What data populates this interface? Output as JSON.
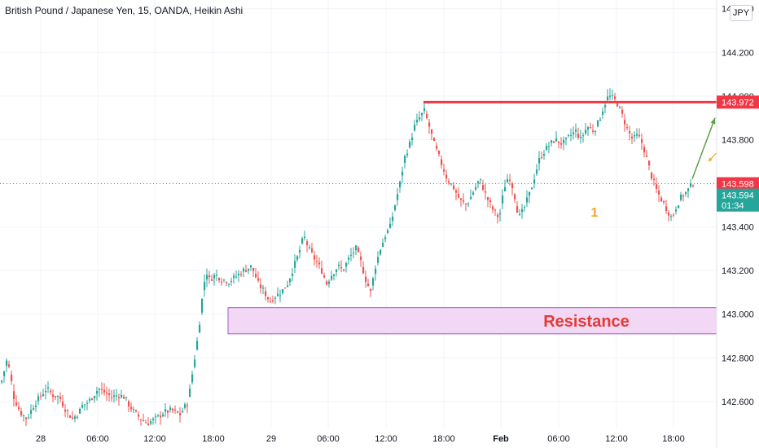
{
  "header": {
    "title": "British Pound / Japanese Yen, 15, OANDA, Heikin Ashi",
    "currency": "JPY"
  },
  "colors": {
    "up": "#26a69a",
    "down": "#ef5350",
    "resistance_line": "#f23645",
    "zone_fill": "#f2d8f4",
    "zone_border": "#a35bc4",
    "arrow": "#5da046",
    "small_arrow": "#f5a623",
    "grid": "#f0f3fa",
    "axis_text": "#131722"
  },
  "chart_data": {
    "type": "candlestick",
    "ylim": [
      142.48,
      144.44
    ],
    "x_ticks": [
      "28",
      "06:00",
      "12:00",
      "18:00",
      "29",
      "06:00",
      "12:00",
      "18:00",
      "Feb",
      "06:00",
      "12:00",
      "18:00"
    ],
    "y_ticks": [
      "144.400",
      "144.200",
      "144.000",
      "143.800",
      "143.600",
      "143.400",
      "143.200",
      "143.000",
      "142.800",
      "142.600"
    ],
    "price_labels": [
      {
        "text": "143.972",
        "value": 143.972,
        "style": "red"
      },
      {
        "text": "143.598",
        "value": 143.598,
        "style": "red"
      },
      {
        "text": "143.594",
        "value": 143.594,
        "style": "green"
      },
      {
        "text": "01:34",
        "value": 143.53,
        "style": "green"
      }
    ],
    "resistance_level": 143.972,
    "current_price": 143.598,
    "zone": {
      "label": "Resistance",
      "high": 143.03,
      "low": 142.91
    },
    "annotation": "1",
    "series_path": [
      [
        0,
        142.68
      ],
      [
        8,
        142.8
      ],
      [
        16,
        142.62
      ],
      [
        24,
        142.55
      ],
      [
        32,
        142.52
      ],
      [
        40,
        142.58
      ],
      [
        48,
        142.62
      ],
      [
        56,
        142.66
      ],
      [
        64,
        142.63
      ],
      [
        72,
        142.62
      ],
      [
        80,
        142.56
      ],
      [
        88,
        142.52
      ],
      [
        96,
        142.55
      ],
      [
        100,
        142.58
      ],
      [
        108,
        142.6
      ],
      [
        114,
        142.63
      ],
      [
        120,
        142.66
      ],
      [
        128,
        142.64
      ],
      [
        136,
        142.62
      ],
      [
        144,
        142.63
      ],
      [
        152,
        142.62
      ],
      [
        158,
        142.58
      ],
      [
        164,
        142.55
      ],
      [
        172,
        142.52
      ],
      [
        180,
        142.5
      ],
      [
        190,
        142.52
      ],
      [
        200,
        142.55
      ],
      [
        210,
        142.56
      ],
      [
        220,
        142.54
      ],
      [
        230,
        142.6
      ],
      [
        236,
        142.75
      ],
      [
        242,
        142.9
      ],
      [
        248,
        143.1
      ],
      [
        252,
        143.2
      ],
      [
        256,
        143.16
      ],
      [
        264,
        143.18
      ],
      [
        272,
        143.16
      ],
      [
        280,
        143.15
      ],
      [
        288,
        143.17
      ],
      [
        298,
        143.2
      ],
      [
        308,
        143.22
      ],
      [
        316,
        143.14
      ],
      [
        324,
        143.1
      ],
      [
        330,
        143.06
      ],
      [
        336,
        143.08
      ],
      [
        344,
        143.1
      ],
      [
        352,
        143.14
      ],
      [
        360,
        143.22
      ],
      [
        366,
        143.28
      ],
      [
        372,
        143.36
      ],
      [
        378,
        143.3
      ],
      [
        386,
        143.25
      ],
      [
        394,
        143.2
      ],
      [
        400,
        143.14
      ],
      [
        406,
        143.18
      ],
      [
        414,
        143.22
      ],
      [
        420,
        143.2
      ],
      [
        428,
        143.26
      ],
      [
        436,
        143.3
      ],
      [
        442,
        143.24
      ],
      [
        448,
        143.16
      ],
      [
        454,
        143.1
      ],
      [
        460,
        143.22
      ],
      [
        466,
        143.3
      ],
      [
        472,
        143.36
      ],
      [
        478,
        143.4
      ],
      [
        484,
        143.5
      ],
      [
        490,
        143.6
      ],
      [
        496,
        143.72
      ],
      [
        502,
        143.78
      ],
      [
        508,
        143.86
      ],
      [
        514,
        143.9
      ],
      [
        520,
        143.93
      ],
      [
        526,
        143.86
      ],
      [
        532,
        143.78
      ],
      [
        540,
        143.7
      ],
      [
        548,
        143.62
      ],
      [
        556,
        143.58
      ],
      [
        564,
        143.52
      ],
      [
        572,
        143.5
      ],
      [
        580,
        143.56
      ],
      [
        588,
        143.62
      ],
      [
        596,
        143.54
      ],
      [
        604,
        143.48
      ],
      [
        612,
        143.44
      ],
      [
        618,
        143.58
      ],
      [
        624,
        143.64
      ],
      [
        630,
        143.56
      ],
      [
        636,
        143.44
      ],
      [
        642,
        143.48
      ],
      [
        650,
        143.56
      ],
      [
        656,
        143.64
      ],
      [
        662,
        143.72
      ],
      [
        670,
        143.76
      ],
      [
        680,
        143.8
      ],
      [
        690,
        143.78
      ],
      [
        700,
        143.82
      ],
      [
        706,
        143.84
      ],
      [
        712,
        143.8
      ],
      [
        720,
        143.86
      ],
      [
        728,
        143.84
      ],
      [
        734,
        143.88
      ],
      [
        740,
        143.95
      ],
      [
        746,
        144.0
      ],
      [
        752,
        143.99
      ],
      [
        758,
        143.96
      ],
      [
        764,
        143.9
      ],
      [
        770,
        143.84
      ],
      [
        776,
        143.8
      ],
      [
        782,
        143.82
      ],
      [
        788,
        143.78
      ],
      [
        794,
        143.7
      ],
      [
        800,
        143.62
      ],
      [
        806,
        143.56
      ],
      [
        812,
        143.52
      ],
      [
        818,
        143.48
      ],
      [
        824,
        143.44
      ],
      [
        830,
        143.5
      ],
      [
        836,
        143.54
      ],
      [
        842,
        143.56
      ],
      [
        850,
        143.6
      ]
    ]
  }
}
